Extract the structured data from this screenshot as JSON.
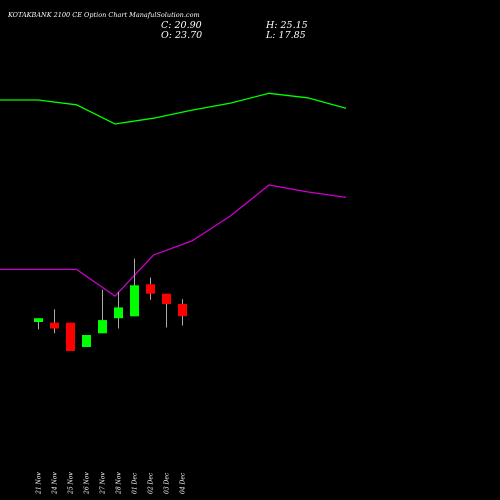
{
  "header": {
    "title": "KOTAKBANK 2100  CE Option  Chart ManafulSolution.com",
    "close": "C: 20.90",
    "high": "H: 25.15",
    "open": "O: 23.70",
    "low": "L: 17.85"
  },
  "chart_data": {
    "type": "candlestick",
    "ylim": [
      0,
      100
    ],
    "colors": {
      "up": "#00ff00",
      "down": "#ff0000",
      "upper_line": "#00ff00",
      "lower_line": "#cc00cc",
      "background": "#000000"
    },
    "categories": [
      "21 Nov",
      "24 Nov",
      "25 Nov",
      "26 Nov",
      "27 Nov",
      "28 Nov",
      "01 Dec",
      "02 Dec",
      "03 Dec",
      "04 Dec"
    ],
    "candles": [
      {
        "date": "21 Nov",
        "open": 32.5,
        "high": 34.1,
        "low": 29.4,
        "close": 34.1,
        "direction": "up"
      },
      {
        "date": "24 Nov",
        "open": 32.2,
        "high": 37.8,
        "low": 27.8,
        "close": 29.8,
        "direction": "down"
      },
      {
        "date": "25 Nov",
        "open": 32.2,
        "high": 32.2,
        "low": 20.4,
        "close": 20.4,
        "direction": "down"
      },
      {
        "date": "26 Nov",
        "open": 22.1,
        "high": 27.1,
        "low": 22.1,
        "close": 27.1,
        "direction": "up"
      },
      {
        "date": "27 Nov",
        "open": 27.8,
        "high": 45.9,
        "low": 27.8,
        "close": 33.3,
        "direction": "up"
      },
      {
        "date": "28 Nov",
        "open": 34.1,
        "high": 45.1,
        "low": 29.8,
        "close": 38.6,
        "direction": "up"
      },
      {
        "date": "01 Dec",
        "open": 34.9,
        "high": 58.9,
        "low": 34.9,
        "close": 47.8,
        "direction": "up"
      },
      {
        "date": "02 Dec",
        "open": 48.2,
        "high": 51.0,
        "low": 41.8,
        "close": 44.3,
        "direction": "down"
      },
      {
        "date": "03 Dec",
        "open": 44.3,
        "high": 44.3,
        "low": 30.2,
        "close": 40.0,
        "direction": "down"
      },
      {
        "date": "04 Dec",
        "open": 40.0,
        "high": 42.0,
        "low": 31.0,
        "close": 34.9,
        "direction": "down"
      }
    ],
    "upper_line": [
      {
        "x": 0.0,
        "y": 125
      },
      {
        "x": 1.0,
        "y": 125
      },
      {
        "x": 2.0,
        "y": 123
      },
      {
        "x": 3.0,
        "y": 115
      },
      {
        "x": 4.0,
        "y": 117.4
      },
      {
        "x": 5.0,
        "y": 120.8
      },
      {
        "x": 6.0,
        "y": 123.7
      },
      {
        "x": 7.0,
        "y": 127.8
      },
      {
        "x": 8.0,
        "y": 125.9
      },
      {
        "x": 9.0,
        "y": 121.6
      }
    ],
    "lower_line": [
      {
        "x": 0.0,
        "y": 54.4
      },
      {
        "x": 1.0,
        "y": 54.4
      },
      {
        "x": 2.0,
        "y": 54.4
      },
      {
        "x": 3.0,
        "y": 43.3
      },
      {
        "x": 4.0,
        "y": 60.4
      },
      {
        "x": 5.0,
        "y": 66.3
      },
      {
        "x": 6.0,
        "y": 76.7
      },
      {
        "x": 7.0,
        "y": 89.6
      },
      {
        "x": 8.0,
        "y": 86.7
      },
      {
        "x": 9.0,
        "y": 84.4
      }
    ]
  }
}
